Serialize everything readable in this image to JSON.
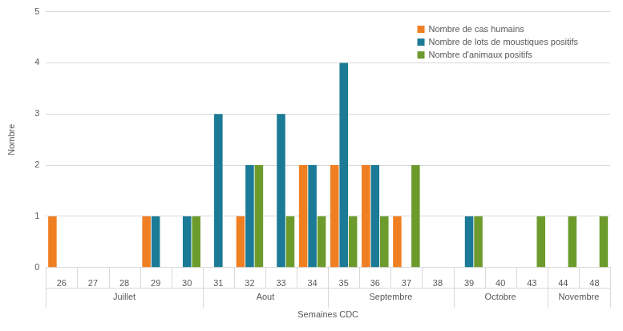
{
  "chart_data": {
    "type": "bar",
    "y_label": "Nombre",
    "x_label": "Semaines CDC",
    "categories": [
      "26",
      "27",
      "28",
      "29",
      "30",
      "31",
      "32",
      "33",
      "34",
      "35",
      "36",
      "37",
      "38",
      "39",
      "40",
      "43",
      "44",
      "48"
    ],
    "category_groups": [
      "Juillet",
      "Juillet",
      "Juillet",
      "Juillet",
      "Juillet",
      "Aout",
      "Aout",
      "Aout",
      "Aout",
      "Septembre",
      "Septembre",
      "Septembre",
      "Septembre",
      "Octobre",
      "Octobre",
      "Octobre",
      "Novembre",
      "Novembre"
    ],
    "series": [
      {
        "name": "Nombre de cas humains",
        "color": "#f07f22",
        "values": [
          1,
          0,
          0,
          1,
          0,
          0,
          1,
          0,
          2,
          2,
          2,
          1,
          0,
          0,
          0,
          0,
          0,
          0
        ]
      },
      {
        "name": "Nombre de lots de moustiques positifs",
        "color": "#1b7a96",
        "values": [
          0,
          0,
          0,
          1,
          1,
          3,
          2,
          3,
          2,
          4,
          2,
          0,
          0,
          1,
          0,
          0,
          0,
          0
        ]
      },
      {
        "name": "Nombre d'animaux positifs",
        "color": "#6c9b2c",
        "values": [
          0,
          0,
          0,
          0,
          1,
          0,
          2,
          1,
          1,
          1,
          1,
          2,
          0,
          1,
          0,
          1,
          1,
          1
        ]
      }
    ],
    "ylim": [
      0,
      5
    ],
    "yticks": [
      0,
      1,
      2,
      3,
      4,
      5
    ],
    "grid": true,
    "legend": "top right"
  }
}
